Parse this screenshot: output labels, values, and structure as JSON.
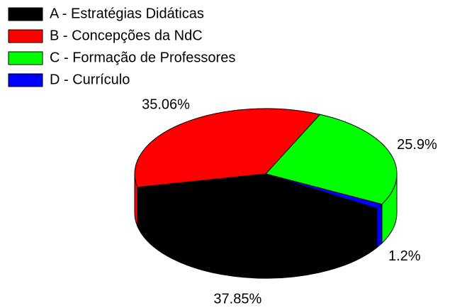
{
  "chart_data": {
    "type": "pie",
    "categories": [
      "A - Estratégias Didáticas",
      "B - Concepções da NdC",
      "C - Formação de Professores",
      "D - Currículo"
    ],
    "values": [
      37.85,
      35.06,
      25.9,
      1.2
    ],
    "value_labels": [
      "37.85%",
      "35.06%",
      "25.9%",
      "1.2%"
    ],
    "colors": [
      "#000000",
      "#ff0000",
      "#00ff00",
      "#0000ff"
    ]
  }
}
